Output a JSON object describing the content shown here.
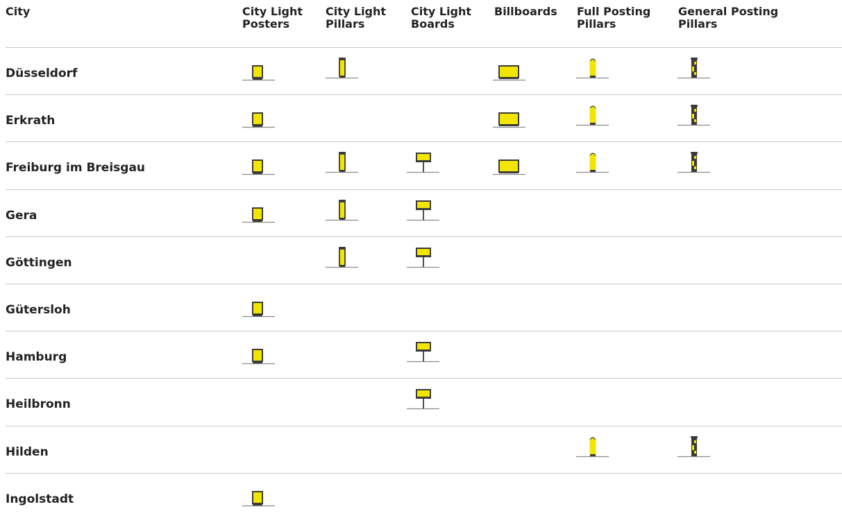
{
  "columns": [
    {
      "key": "clp",
      "label": "City Light\nPosters"
    },
    {
      "key": "pillar",
      "label": "City Light\nPillars"
    },
    {
      "key": "board",
      "label": "City Light\nBoards"
    },
    {
      "key": "billboard",
      "label": "Billboards"
    },
    {
      "key": "full",
      "label": "Full Posting\nPillars"
    },
    {
      "key": "general",
      "label": "General Posting\nPillars"
    }
  ],
  "city_header": "City",
  "rows": [
    {
      "city": "Düsseldorf",
      "media": {
        "clp": true,
        "pillar": true,
        "board": false,
        "billboard": true,
        "full": true,
        "general": true
      }
    },
    {
      "city": "Erkrath",
      "media": {
        "clp": true,
        "pillar": false,
        "board": false,
        "billboard": true,
        "full": true,
        "general": true
      }
    },
    {
      "city": "Freiburg im Breisgau",
      "media": {
        "clp": true,
        "pillar": true,
        "board": true,
        "billboard": true,
        "full": true,
        "general": true
      }
    },
    {
      "city": "Gera",
      "media": {
        "clp": true,
        "pillar": true,
        "board": true,
        "billboard": false,
        "full": false,
        "general": false
      }
    },
    {
      "city": "Göttingen",
      "media": {
        "clp": false,
        "pillar": true,
        "board": true,
        "billboard": false,
        "full": false,
        "general": false
      }
    },
    {
      "city": "Gütersloh",
      "media": {
        "clp": true,
        "pillar": false,
        "board": false,
        "billboard": false,
        "full": false,
        "general": false
      }
    },
    {
      "city": "Hamburg",
      "media": {
        "clp": true,
        "pillar": false,
        "board": true,
        "billboard": false,
        "full": false,
        "general": false
      }
    },
    {
      "city": "Heilbronn",
      "media": {
        "clp": false,
        "pillar": false,
        "board": true,
        "billboard": false,
        "full": false,
        "general": false
      }
    },
    {
      "city": "Hilden",
      "media": {
        "clp": false,
        "pillar": false,
        "board": false,
        "billboard": false,
        "full": true,
        "general": true
      }
    },
    {
      "city": "Ingolstadt",
      "media": {
        "clp": true,
        "pillar": false,
        "board": false,
        "billboard": false,
        "full": false,
        "general": false
      }
    }
  ],
  "colors": {
    "icon_fill": "#f2e600",
    "icon_stroke": "#3a3a3a",
    "ground": "#8a8a8a",
    "rule": "#c8c8c8"
  }
}
